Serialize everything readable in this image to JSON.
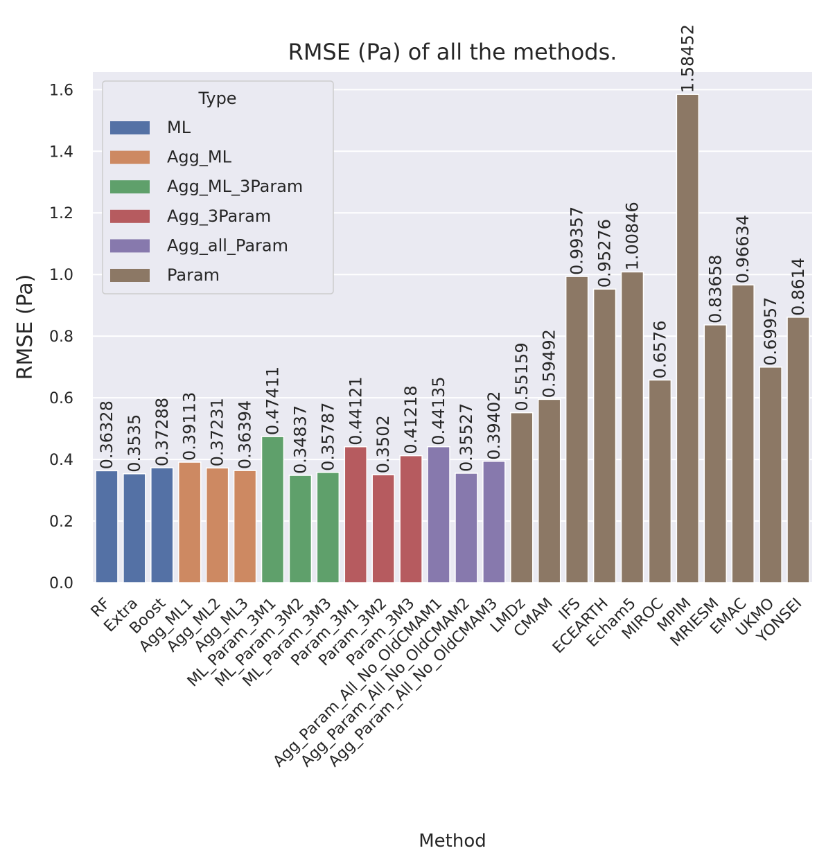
{
  "chart_data": {
    "type": "bar",
    "title": "RMSE (Pa) of all the methods.",
    "xlabel": "Method",
    "ylabel": "RMSE (Pa)",
    "ylim": [
      0,
      1.66
    ],
    "yticks": [
      "0.0",
      "0.2",
      "0.4",
      "0.6",
      "0.8",
      "1.0",
      "1.2",
      "1.4",
      "1.6"
    ],
    "grid": true,
    "legend": {
      "title": "Type",
      "position": "top-left",
      "entries": [
        {
          "name": "ML",
          "color": "#5471a5"
        },
        {
          "name": "Agg_ML",
          "color": "#cd8962"
        },
        {
          "name": "Agg_ML_3Param",
          "color": "#5fa06b"
        },
        {
          "name": "Agg_3Param",
          "color": "#b65b5f"
        },
        {
          "name": "Agg_all_Param",
          "color": "#8779ad"
        },
        {
          "name": "Param",
          "color": "#8c7865"
        }
      ]
    },
    "categories": [
      "RF",
      "Extra",
      "Boost",
      "Agg_ML1",
      "Agg_ML2",
      "Agg_ML3",
      "ML_Param_3M1",
      "ML_Param_3M2",
      "ML_Param_3M3",
      "Param_3M1",
      "Param_3M2",
      "Param_3M3",
      "Agg_Param_All_No_OldCMAM1",
      "Agg_Param_All_No_OldCMAM2",
      "Agg_Param_All_No_OldCMAM3",
      "LMDz",
      "CMAM",
      "IFS",
      "ECEARTH",
      "Echam5",
      "MIROC",
      "MPIM",
      "MRIESM",
      "EMAC",
      "UKMO",
      "YONSEI"
    ],
    "values": [
      0.36328,
      0.3535,
      0.37288,
      0.39113,
      0.37231,
      0.36394,
      0.47411,
      0.34837,
      0.35787,
      0.44121,
      0.3502,
      0.41218,
      0.44135,
      0.35527,
      0.39402,
      0.55159,
      0.59492,
      0.99357,
      0.95276,
      1.00846,
      0.6576,
      1.58452,
      0.83658,
      0.96634,
      0.69957,
      0.8614
    ],
    "value_labels": [
      "0.36328",
      "0.3535",
      "0.37288",
      "0.39113",
      "0.37231",
      "0.36394",
      "0.47411",
      "0.34837",
      "0.35787",
      "0.44121",
      "0.3502",
      "0.41218",
      "0.44135",
      "0.35527",
      "0.39402",
      "0.55159",
      "0.59492",
      "0.99357",
      "0.95276",
      "1.00846",
      "0.6576",
      "1.58452",
      "0.83658",
      "0.96634",
      "0.69957",
      "0.8614"
    ],
    "types": [
      "ML",
      "ML",
      "ML",
      "Agg_ML",
      "Agg_ML",
      "Agg_ML",
      "Agg_ML_3Param",
      "Agg_ML_3Param",
      "Agg_ML_3Param",
      "Agg_3Param",
      "Agg_3Param",
      "Agg_3Param",
      "Agg_all_Param",
      "Agg_all_Param",
      "Agg_all_Param",
      "Param",
      "Param",
      "Param",
      "Param",
      "Param",
      "Param",
      "Param",
      "Param",
      "Param",
      "Param",
      "Param"
    ]
  }
}
